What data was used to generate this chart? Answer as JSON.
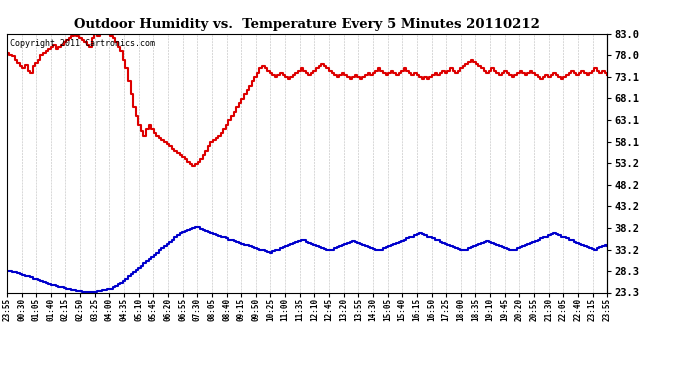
{
  "title": "Outdoor Humidity vs.  Temperature Every 5 Minutes 20110212",
  "copyright_text": "Copyright 2011 Cartronics.com",
  "yticks_right": [
    83.0,
    78.0,
    73.1,
    68.1,
    63.1,
    58.1,
    53.2,
    48.2,
    43.2,
    38.2,
    33.2,
    28.3,
    23.3
  ],
  "ymin": 23.3,
  "ymax": 83.0,
  "bg_color": "#ffffff",
  "grid_color": "#aaaaaa",
  "red_color": "#dd0000",
  "blue_color": "#0000cc",
  "x_labels": [
    "23:55",
    "00:30",
    "01:05",
    "01:40",
    "02:15",
    "02:50",
    "03:25",
    "04:00",
    "04:35",
    "05:10",
    "05:45",
    "06:20",
    "06:55",
    "07:30",
    "08:05",
    "08:40",
    "09:15",
    "09:50",
    "10:25",
    "11:00",
    "11:35",
    "12:10",
    "12:45",
    "13:20",
    "13:55",
    "14:30",
    "15:05",
    "15:40",
    "16:15",
    "16:50",
    "17:25",
    "18:00",
    "18:35",
    "19:10",
    "19:45",
    "20:20",
    "20:55",
    "21:30",
    "22:05",
    "22:40",
    "23:15",
    "23:55"
  ],
  "red_humidity": [
    78.5,
    78.2,
    77.8,
    77.0,
    76.2,
    75.5,
    75.0,
    75.8,
    74.5,
    74.0,
    75.5,
    76.2,
    77.0,
    78.0,
    78.5,
    79.0,
    79.5,
    80.0,
    80.5,
    79.5,
    80.0,
    80.5,
    81.0,
    81.5,
    82.0,
    82.5,
    83.0,
    82.5,
    82.0,
    81.5,
    81.0,
    80.5,
    80.0,
    82.0,
    83.0,
    82.5,
    83.5,
    84.0,
    83.5,
    83.0,
    82.5,
    82.0,
    81.0,
    80.0,
    79.0,
    77.0,
    75.0,
    72.0,
    69.0,
    66.0,
    64.0,
    62.0,
    60.5,
    59.5,
    61.0,
    62.0,
    61.0,
    60.0,
    59.5,
    59.0,
    58.5,
    58.0,
    57.5,
    57.0,
    56.5,
    56.0,
    55.5,
    55.0,
    54.5,
    54.0,
    53.5,
    53.0,
    52.5,
    53.0,
    53.5,
    54.0,
    55.0,
    56.0,
    57.0,
    58.0,
    58.5,
    59.0,
    59.5,
    60.0,
    61.0,
    62.0,
    63.0,
    64.0,
    65.0,
    66.0,
    67.0,
    68.0,
    69.0,
    70.0,
    71.0,
    72.0,
    73.0,
    74.0,
    75.0,
    75.5,
    75.0,
    74.5,
    74.0,
    73.5,
    73.0,
    73.5,
    74.0,
    73.5,
    73.0,
    72.5,
    73.0,
    73.5,
    74.0,
    74.5,
    75.0,
    74.5,
    74.0,
    73.5,
    74.0,
    74.5,
    75.0,
    75.5,
    76.0,
    75.5,
    75.0,
    74.5,
    74.0,
    73.5,
    73.0,
    73.5,
    74.0,
    73.5,
    73.0,
    72.5,
    73.0,
    73.5,
    73.0,
    72.5,
    73.0,
    73.5,
    74.0,
    73.5,
    74.0,
    74.5,
    75.0,
    74.5,
    74.0,
    73.5,
    74.0,
    74.5,
    74.0,
    73.5,
    74.0,
    74.5,
    75.0,
    74.5,
    74.0,
    73.5,
    74.0,
    73.5,
    73.0,
    72.5,
    73.0,
    72.5,
    73.0,
    73.5,
    74.0,
    73.5,
    74.0,
    74.5,
    74.0,
    74.5,
    75.0,
    74.5,
    74.0,
    74.5,
    75.0,
    75.5,
    76.0,
    76.5,
    77.0,
    76.5,
    76.0,
    75.5,
    75.0,
    74.5,
    74.0,
    74.5,
    75.0,
    74.5,
    74.0,
    73.5,
    74.0,
    74.5,
    74.0,
    73.5,
    73.0,
    73.5,
    74.0,
    74.5,
    74.0,
    73.5,
    74.0,
    74.5,
    74.0,
    73.5,
    73.0,
    72.5,
    73.0,
    73.5,
    73.0,
    73.5,
    74.0,
    73.5,
    73.0,
    72.5,
    73.0,
    73.5,
    74.0,
    74.5,
    74.0,
    73.5,
    74.0,
    74.5,
    74.0,
    73.5,
    74.0,
    74.5,
    75.0,
    74.5,
    74.0,
    74.5,
    74.0,
    73.5
  ],
  "blue_temp": [
    28.3,
    28.2,
    28.1,
    28.0,
    27.8,
    27.5,
    27.3,
    27.2,
    27.0,
    26.8,
    26.5,
    26.3,
    26.1,
    26.0,
    25.8,
    25.5,
    25.3,
    25.1,
    25.0,
    24.8,
    24.6,
    24.5,
    24.3,
    24.2,
    24.0,
    23.9,
    23.8,
    23.7,
    23.6,
    23.5,
    23.5,
    23.5,
    23.5,
    23.5,
    23.5,
    23.6,
    23.7,
    23.8,
    23.9,
    24.0,
    24.2,
    24.5,
    24.8,
    25.2,
    25.6,
    26.0,
    26.5,
    27.0,
    27.5,
    28.0,
    28.5,
    29.0,
    29.5,
    30.0,
    30.5,
    31.0,
    31.5,
    32.0,
    32.5,
    33.0,
    33.5,
    34.0,
    34.5,
    35.0,
    35.5,
    36.0,
    36.5,
    37.0,
    37.2,
    37.5,
    37.8,
    38.0,
    38.2,
    38.5,
    38.3,
    38.0,
    37.8,
    37.5,
    37.3,
    37.0,
    36.8,
    36.5,
    36.3,
    36.2,
    36.0,
    35.8,
    35.5,
    35.3,
    35.2,
    35.0,
    34.8,
    34.5,
    34.3,
    34.2,
    34.0,
    33.8,
    33.5,
    33.3,
    33.2,
    33.0,
    32.8,
    32.6,
    32.5,
    32.8,
    33.0,
    33.2,
    33.5,
    33.8,
    34.0,
    34.2,
    34.5,
    34.8,
    35.0,
    35.2,
    35.5,
    35.3,
    35.0,
    34.8,
    34.5,
    34.3,
    34.0,
    33.8,
    33.5,
    33.3,
    33.2,
    33.0,
    33.2,
    33.5,
    33.8,
    34.0,
    34.2,
    34.5,
    34.8,
    35.0,
    35.2,
    35.0,
    34.8,
    34.5,
    34.3,
    34.0,
    33.8,
    33.5,
    33.3,
    33.2,
    33.0,
    33.2,
    33.5,
    33.8,
    34.0,
    34.2,
    34.5,
    34.8,
    35.0,
    35.2,
    35.5,
    35.8,
    36.0,
    36.2,
    36.5,
    36.8,
    37.0,
    36.8,
    36.5,
    36.2,
    36.0,
    35.8,
    35.5,
    35.3,
    35.0,
    34.8,
    34.5,
    34.3,
    34.0,
    33.8,
    33.5,
    33.3,
    33.2,
    33.0,
    33.2,
    33.5,
    33.8,
    34.0,
    34.2,
    34.5,
    34.8,
    35.0,
    35.2,
    35.0,
    34.8,
    34.5,
    34.3,
    34.0,
    33.8,
    33.5,
    33.3,
    33.2,
    33.0,
    33.2,
    33.5,
    33.8,
    34.0,
    34.2,
    34.5,
    34.8,
    35.0,
    35.2,
    35.5,
    35.8,
    36.0,
    36.2,
    36.5,
    36.8,
    37.0,
    36.8,
    36.5,
    36.2,
    36.0,
    35.8,
    35.5,
    35.3,
    35.0,
    34.8,
    34.5,
    34.3,
    34.0,
    33.8,
    33.5,
    33.3,
    33.2,
    33.5,
    33.8,
    34.0,
    34.2,
    34.0
  ]
}
